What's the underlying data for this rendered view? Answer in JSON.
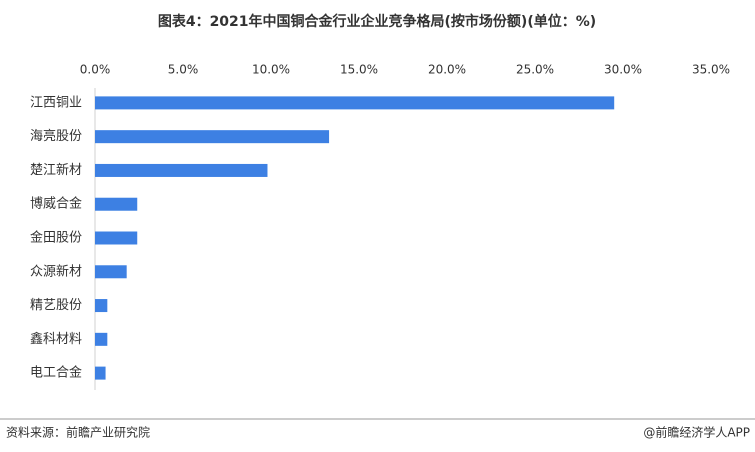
{
  "chart_data": {
    "type": "bar",
    "orientation": "horizontal",
    "title": "图表4：2021年中国铜合金行业企业竞争格局(按市场份额)(单位：%)",
    "categories": [
      "江西铜业",
      "海亮股份",
      "楚江新材",
      "博威合金",
      "金田股份",
      "众源新材",
      "精艺股份",
      "鑫科材料",
      "电工合金"
    ],
    "values": [
      29.5,
      13.3,
      9.8,
      2.4,
      2.4,
      1.8,
      0.7,
      0.7,
      0.6
    ],
    "color": "#3d80e3",
    "xlim": [
      0,
      35
    ],
    "xticks": [
      {
        "value": 0,
        "label": "0.0%"
      },
      {
        "value": 5,
        "label": "5.0%"
      },
      {
        "value": 10,
        "label": "10.0%"
      },
      {
        "value": 15,
        "label": "15.0%"
      },
      {
        "value": 20,
        "label": "20.0%"
      },
      {
        "value": 25,
        "label": "25.0%"
      },
      {
        "value": 30,
        "label": "30.0%"
      },
      {
        "value": 35,
        "label": "35.0%"
      }
    ],
    "grid": false,
    "source": "资料来源：前瞻产业研究院",
    "credit": "@前瞻经济学人APP"
  }
}
